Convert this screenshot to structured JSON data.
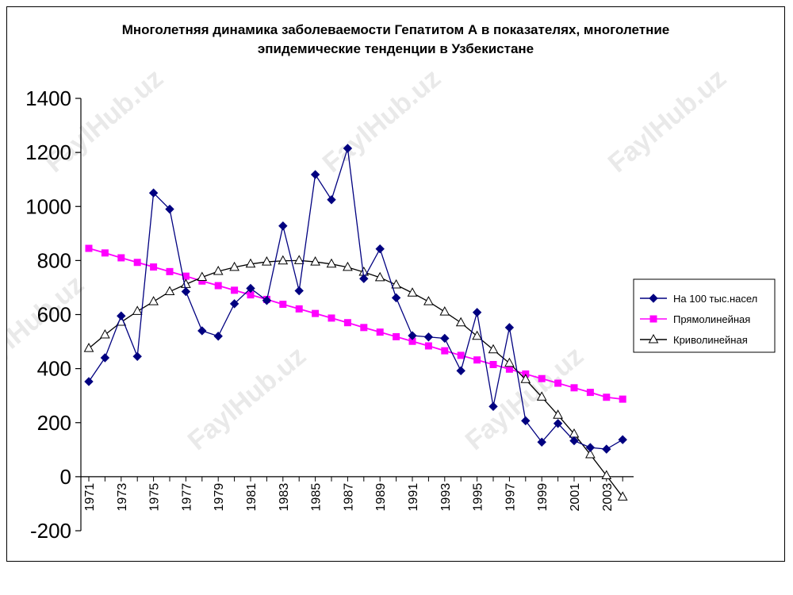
{
  "chart_data": {
    "type": "line",
    "title": "Многолетняя динамика заболеваемости Гепатитом А в показателях, многолетние эпидемические тенденции в Узбекистане",
    "title_lines": [
      "Многолетняя динамика заболеваемости Гепатитом А в показателях, многолетние",
      "эпидемические тенденции в Узбекистане"
    ],
    "xlabel": "",
    "ylabel": "",
    "ylim": [
      -200,
      1400
    ],
    "yticks": [
      -200,
      0,
      200,
      400,
      600,
      800,
      1000,
      1200,
      1400
    ],
    "x": [
      1971,
      1972,
      1973,
      1974,
      1975,
      1976,
      1977,
      1978,
      1979,
      1980,
      1981,
      1982,
      1983,
      1984,
      1985,
      1986,
      1987,
      1988,
      1989,
      1990,
      1991,
      1992,
      1993,
      1994,
      1995,
      1996,
      1997,
      1998,
      1999,
      2000,
      2001,
      2002,
      2003,
      2004
    ],
    "xtick_labels": [
      "1971",
      "1973",
      "1975",
      "1977",
      "1979",
      "1981",
      "1983",
      "1985",
      "1987",
      "1989",
      "1991",
      "1993",
      "1995",
      "1997",
      "1999",
      "2001",
      "2003"
    ],
    "grid": false,
    "legend_position": "right",
    "series": [
      {
        "name": "На 100 тыс.насел",
        "color": "#000080",
        "marker": "diamond",
        "values": [
          352,
          440,
          595,
          445,
          1050,
          990,
          685,
          540,
          520,
          640,
          697,
          652,
          928,
          688,
          1118,
          1025,
          1215,
          733,
          843,
          662,
          522,
          517,
          512,
          392,
          608,
          260,
          552,
          207,
          128,
          197,
          133,
          108,
          102,
          137
        ]
      },
      {
        "name": "Прямолинейная",
        "color": "#ff00ff",
        "marker": "square",
        "values": [
          845,
          828,
          810,
          793,
          776,
          759,
          742,
          724,
          707,
          690,
          673,
          656,
          638,
          621,
          604,
          587,
          570,
          552,
          535,
          518,
          501,
          484,
          466,
          449,
          432,
          415,
          398,
          380,
          363,
          346,
          329,
          312,
          294,
          287
        ]
      },
      {
        "name": "Криволинейная",
        "color": "#000000",
        "marker": "triangle",
        "values": [
          475,
          525,
          572,
          612,
          648,
          685,
          712,
          738,
          760,
          775,
          787,
          795,
          799,
          800,
          795,
          787,
          775,
          757,
          737,
          710,
          680,
          648,
          610,
          570,
          520,
          470,
          420,
          360,
          295,
          228,
          158,
          82,
          4,
          -75
        ]
      }
    ]
  },
  "watermarks": [
    "FaylHub.uz",
    "FaylHub.uz",
    "FaylHub.uz",
    "FaylHub.uz",
    "FaylHub.uz",
    "FaylHub.uz"
  ]
}
